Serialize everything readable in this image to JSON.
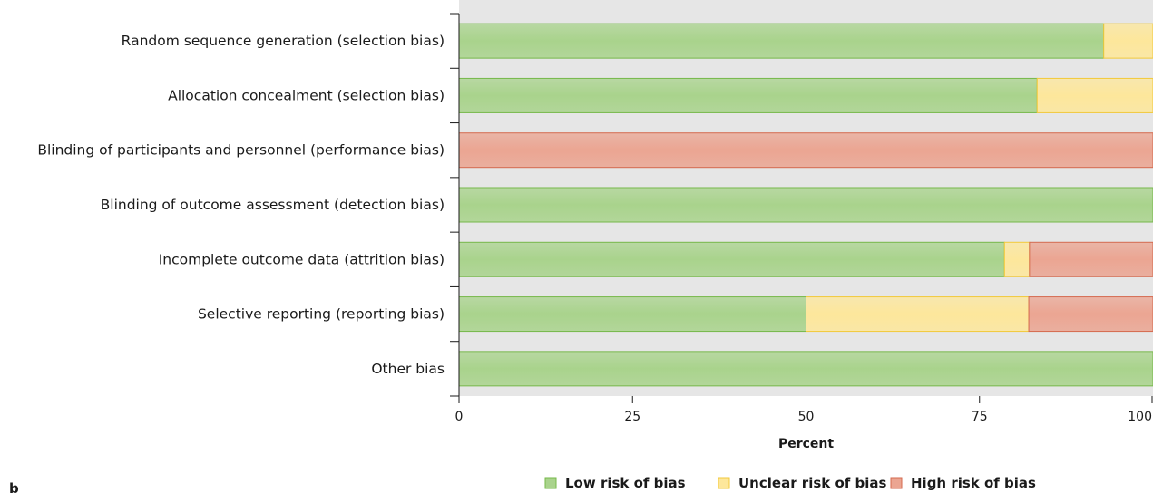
{
  "panel_letter": "b",
  "colors": {
    "background": "#e6e6e6",
    "low": "#a9d38c",
    "low_edge": "#76b84a",
    "unclear": "#fde79b",
    "unclear_edge": "#f2c93b",
    "high": "#eba592",
    "high_edge": "#d46a4f"
  },
  "chart_data": {
    "type": "bar",
    "orientation": "horizontal",
    "stacked": true,
    "categories": [
      "Random sequence generation (selection bias)",
      "Allocation concealment (selection bias)",
      "Blinding of participants and personnel (performance bias)",
      "Blinding of outcome assessment (detection bias)",
      "Incomplete outcome data (attrition bias)",
      "Selective reporting (reporting bias)",
      "Other bias"
    ],
    "series": [
      {
        "name": "Low risk of bias",
        "color_key": "low",
        "values": [
          92.9,
          83.3,
          0,
          100,
          78.6,
          50,
          100
        ]
      },
      {
        "name": "Unclear risk of bias",
        "color_key": "unclear",
        "values": [
          7.1,
          16.7,
          0,
          0,
          3.6,
          32.1,
          0
        ]
      },
      {
        "name": "High risk of bias",
        "color_key": "high",
        "values": [
          0,
          0,
          100,
          0,
          17.8,
          17.9,
          0
        ]
      }
    ],
    "xlabel": "Percent",
    "xlim": [
      0,
      100
    ],
    "xticks": [
      "0",
      "25",
      "50",
      "75",
      "100"
    ],
    "grid": false,
    "legend_position": "bottom-right"
  }
}
